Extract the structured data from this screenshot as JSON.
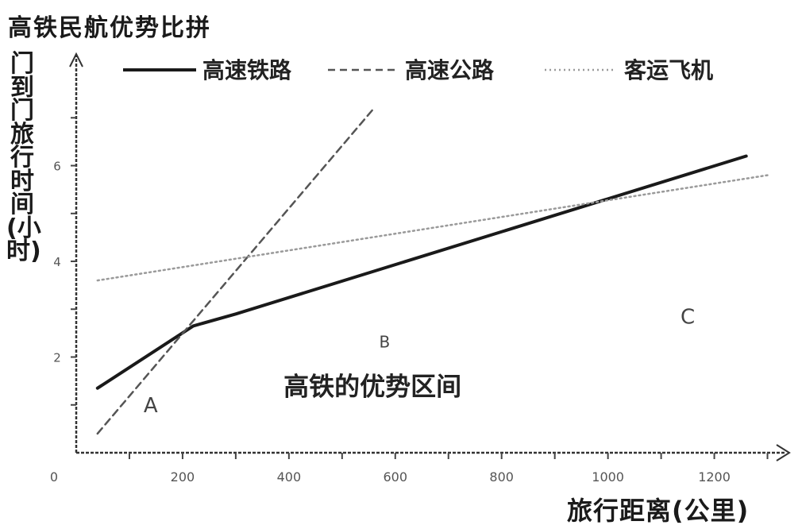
{
  "chart_data": {
    "type": "line",
    "title": "高铁民航优势比拼",
    "xlabel": "旅行距离(公里)",
    "ylabel": "门到门旅行时间(小时)",
    "xlim": [
      0,
      1350
    ],
    "ylim": [
      0,
      8.2
    ],
    "x_ticks": [
      {
        "value": 0,
        "label": "0"
      },
      {
        "value": 200,
        "label": "200"
      },
      {
        "value": 400,
        "label": "400"
      },
      {
        "value": 600,
        "label": "600"
      },
      {
        "value": 800,
        "label": "800"
      },
      {
        "value": 1000,
        "label": "1000"
      },
      {
        "value": 1200,
        "label": "1200"
      }
    ],
    "y_ticks": [
      {
        "value": 2,
        "label": "2"
      },
      {
        "value": 4,
        "label": "4"
      },
      {
        "value": 6,
        "label": "6"
      }
    ],
    "grid": false,
    "legend_position": "top",
    "series": [
      {
        "name": "高速铁路",
        "style": "solid",
        "color": "#1a1a1a",
        "points": [
          [
            40,
            1.35
          ],
          [
            220,
            2.65
          ],
          [
            300,
            2.9
          ],
          [
            1260,
            6.2
          ]
        ]
      },
      {
        "name": "高速公路",
        "style": "dashed",
        "color": "#555555",
        "points": [
          [
            40,
            0.4
          ],
          [
            560,
            7.2
          ]
        ]
      },
      {
        "name": "客运飞机",
        "style": "dotted",
        "color": "#9a9a9a",
        "points": [
          [
            40,
            3.6
          ],
          [
            1300,
            5.8
          ]
        ]
      }
    ],
    "regions": [
      {
        "label": "A",
        "x": 140,
        "y": 0.85
      },
      {
        "label": "B",
        "x": 580,
        "y": 2.2
      },
      {
        "label": "C",
        "x": 1150,
        "y": 2.7
      }
    ],
    "annotations": [
      {
        "text": "高铁的优势区间",
        "x": 390,
        "y": 1.2
      }
    ]
  }
}
